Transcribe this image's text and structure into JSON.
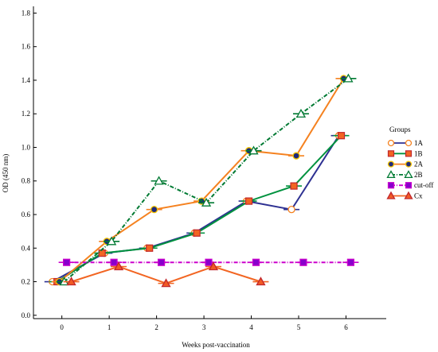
{
  "chart_data": {
    "type": "line",
    "title": "",
    "xlabel": "Weeks post-vaccination",
    "ylabel": "OD (450 nm)",
    "xlim": [
      -0.6,
      6.85
    ],
    "ylim": [
      -0.02,
      1.84
    ],
    "x_ticks": [
      0,
      1,
      2,
      3,
      4,
      5,
      6
    ],
    "y_ticks": [
      0.0,
      0.2,
      0.4,
      0.6,
      0.8,
      1.0,
      1.2,
      1.4,
      1.6,
      1.8
    ],
    "y_tick_labels": [
      "0.0",
      "0.2",
      "0.4",
      "0.6",
      "0.8",
      "1.0",
      "1.2",
      "1.4",
      "1.6",
      "1.8"
    ],
    "grid": false,
    "legend": {
      "title": "Groups",
      "placement": "right",
      "labels": [
        "1A",
        "1B",
        "2A",
        "2B",
        "cut-off",
        "Cx"
      ]
    },
    "series": [
      {
        "name": "1A",
        "line_color": "#2e3192",
        "marker": "circle-open",
        "marker_fill": "#ffffff",
        "marker_stroke": "#f58220",
        "dash": "solid",
        "x": [
          -0.2,
          0.9,
          1.8,
          2.8,
          3.9,
          4.85,
          5.85
        ],
        "y": [
          0.2,
          0.37,
          0.4,
          0.49,
          0.68,
          0.63,
          1.07
        ]
      },
      {
        "name": "1B",
        "line_color": "#00923f",
        "marker": "square",
        "marker_fill": "#f26522",
        "marker_stroke": "#c1272d",
        "dash": "solid",
        "x": [
          -0.1,
          0.85,
          1.85,
          2.85,
          3.95,
          4.9,
          5.9
        ],
        "y": [
          0.2,
          0.37,
          0.4,
          0.49,
          0.68,
          0.77,
          1.07
        ]
      },
      {
        "name": "2A",
        "line_color": "#f58220",
        "marker": "circle",
        "marker_fill": "#1f2a7c",
        "marker_stroke": "#f7c600",
        "dash": "solid",
        "x": [
          -0.05,
          0.95,
          1.95,
          2.95,
          3.95,
          4.95,
          5.95
        ],
        "y": [
          0.2,
          0.44,
          0.63,
          0.68,
          0.98,
          0.95,
          1.41
        ]
      },
      {
        "name": "2B",
        "line_color": "#007a33",
        "marker": "triangle-open",
        "marker_fill": "#ffffff",
        "marker_stroke": "#007a33",
        "dash": "dash-dot",
        "x": [
          0.05,
          1.05,
          2.05,
          3.05,
          4.05,
          5.05,
          6.05
        ],
        "y": [
          0.2,
          0.44,
          0.8,
          0.67,
          0.98,
          1.2,
          1.41
        ]
      },
      {
        "name": "cut-off",
        "line_color": "#cc00cc",
        "marker": "square",
        "marker_fill": "#8800cc",
        "marker_stroke": "#cc00cc",
        "dash": "dash-dot",
        "x": [
          0.1,
          1.1,
          2.1,
          3.1,
          4.1,
          5.1,
          6.1
        ],
        "y": [
          0.315,
          0.315,
          0.315,
          0.315,
          0.315,
          0.315,
          0.315
        ]
      },
      {
        "name": "Cx",
        "line_color": "#f26522",
        "marker": "triangle",
        "marker_fill": "#f15a24",
        "marker_stroke": "#c1272d",
        "dash": "solid",
        "x": [
          0.2,
          1.2,
          2.2,
          3.2,
          4.2
        ],
        "y": [
          0.2,
          0.29,
          0.19,
          0.29,
          0.2
        ]
      }
    ]
  }
}
